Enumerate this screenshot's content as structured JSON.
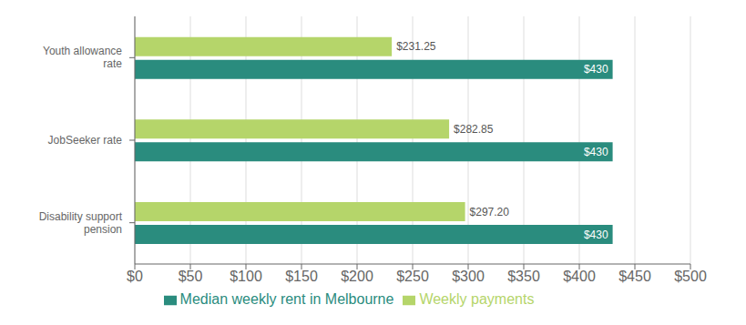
{
  "chart_data": {
    "type": "bar",
    "orientation": "horizontal",
    "categories": [
      "Youth allowance\nrate",
      "JobSeeker rate",
      "Disability support\npension"
    ],
    "series": [
      {
        "name": "Weekly payments",
        "color": "#b5d56a",
        "values": [
          231.25,
          282.85,
          297.2
        ],
        "value_labels": [
          "$231.25",
          "$282.85",
          "$297.20"
        ]
      },
      {
        "name": "Median weekly rent in Melbourne",
        "color": "#2a8c7e",
        "values": [
          430,
          430,
          430
        ],
        "value_labels": [
          "$430",
          "$430",
          "$430"
        ]
      }
    ],
    "xlim": [
      0,
      500
    ],
    "xticks": [
      {
        "value": 0,
        "label": "$0"
      },
      {
        "value": 50,
        "label": "$50"
      },
      {
        "value": 100,
        "label": "$100"
      },
      {
        "value": 150,
        "label": "$150"
      },
      {
        "value": 200,
        "label": "$200"
      },
      {
        "value": 250,
        "label": "$250"
      },
      {
        "value": 300,
        "label": "$300"
      },
      {
        "value": 350,
        "label": "$350"
      },
      {
        "value": 400,
        "label": "$400"
      },
      {
        "value": 450,
        "label": "$450"
      },
      {
        "value": 500,
        "label": "$500"
      }
    ],
    "grid": true,
    "legend": "bottom",
    "data_labels": true
  }
}
